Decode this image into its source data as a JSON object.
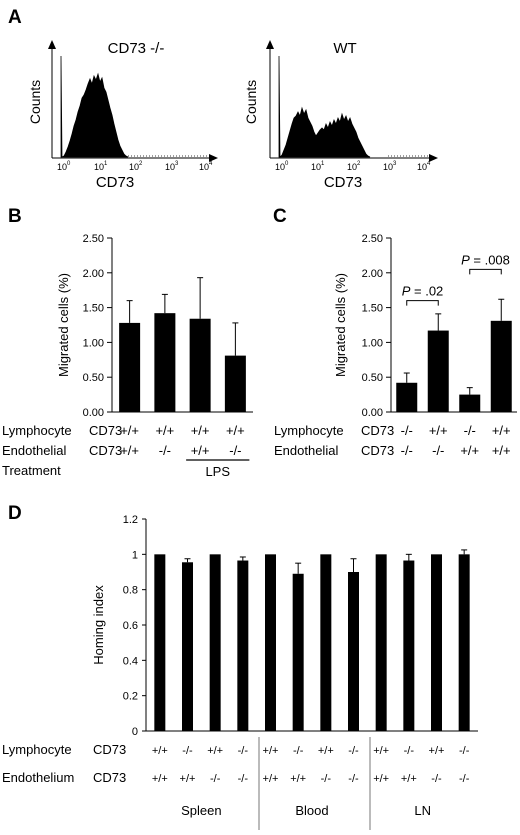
{
  "panels": {
    "A": "A",
    "B": "B",
    "C": "C",
    "D": "D"
  },
  "panel_a": {
    "left_title": "CD73 -/-",
    "right_title": "WT",
    "ylabel": "Counts",
    "xlabel": "CD73",
    "ticks": [
      "10",
      "10",
      "10",
      "10",
      "10"
    ],
    "tick_exponents": [
      "0",
      "1",
      "2",
      "3",
      "4"
    ]
  },
  "row_labels": {
    "lymphocyte": "Lymphocyte",
    "endothelial": "Endothelial",
    "endothelium": "Endothelium",
    "treatment": "Treatment",
    "cd73": "CD73"
  },
  "chart_data": [
    {
      "id": "B",
      "type": "bar",
      "ylabel": "Migrated cells (%)",
      "ylim": [
        0,
        2.5
      ],
      "yticks": [
        "0.00",
        "0.50",
        "1.00",
        "1.50",
        "2.00",
        "2.50"
      ],
      "values": [
        1.28,
        1.42,
        1.34,
        0.81
      ],
      "errors": [
        0.32,
        0.27,
        0.59,
        0.47
      ],
      "lymphocyte_cd73": [
        "+/+",
        "+/+",
        "+/+",
        "+/+"
      ],
      "endothelial_cd73": [
        "+/+",
        "-/-",
        "+/+",
        "-/-"
      ],
      "treatment_label": "LPS"
    },
    {
      "id": "C",
      "type": "bar",
      "ylabel": "Migrated cells (%)",
      "ylim": [
        0,
        2.5
      ],
      "yticks": [
        "0.00",
        "0.50",
        "1.00",
        "1.50",
        "2.00",
        "2.50"
      ],
      "values": [
        0.42,
        1.17,
        0.25,
        1.31
      ],
      "errors": [
        0.14,
        0.24,
        0.1,
        0.31
      ],
      "lymphocyte_cd73": [
        "-/-",
        "+/+",
        "-/-",
        "+/+"
      ],
      "endothelial_cd73": [
        "-/-",
        "-/-",
        "+/+",
        "+/+"
      ],
      "annotations": [
        {
          "pair": [
            0,
            1
          ],
          "p_label": "P",
          "p_value": " = .02",
          "y": 1.6
        },
        {
          "pair": [
            2,
            3
          ],
          "p_label": "P",
          "p_value": " = .008",
          "y": 2.05
        }
      ]
    },
    {
      "id": "D",
      "type": "bar",
      "ylabel": "Homing index",
      "ylim": [
        0,
        1.2
      ],
      "yticks": [
        "0",
        "0.2",
        "0.4",
        "0.6",
        "0.8",
        "1",
        "1.2"
      ],
      "values": [
        1.0,
        0.955,
        1.0,
        0.965,
        1.0,
        0.89,
        1.0,
        0.9,
        1.0,
        0.965,
        1.0,
        1.0
      ],
      "errors": [
        0,
        0.02,
        0,
        0.02,
        0,
        0.06,
        0,
        0.075,
        0,
        0.035,
        0,
        0.025
      ],
      "lymphocyte_cd73": [
        "+/+",
        "-/-",
        "+/+",
        "-/-",
        "+/+",
        "-/-",
        "+/+",
        "-/-",
        "+/+",
        "-/-",
        "+/+",
        "-/-"
      ],
      "endothelium_cd73": [
        "+/+",
        "+/+",
        "-/-",
        "-/-",
        "+/+",
        "+/+",
        "-/-",
        "-/-",
        "+/+",
        "+/+",
        "-/-",
        "-/-"
      ],
      "groups": [
        "Spleen",
        "Blood",
        "LN"
      ]
    }
  ]
}
